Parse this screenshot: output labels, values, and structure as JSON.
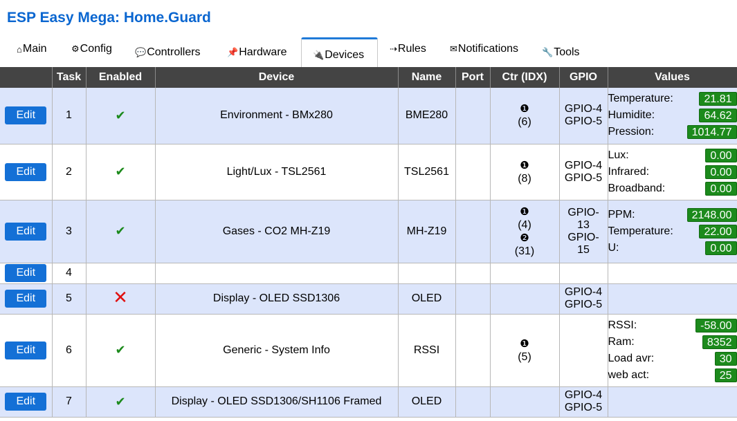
{
  "app": {
    "title": "ESP Easy Mega: Home.Guard"
  },
  "tabs": [
    {
      "icon": "⌂",
      "label": "Main"
    },
    {
      "icon": "⚙",
      "label": "Config"
    },
    {
      "icon": "💬",
      "label": "Controllers"
    },
    {
      "icon": "📌",
      "label": "Hardware"
    },
    {
      "icon": "🔌",
      "label": "Devices"
    },
    {
      "icon": "⇢",
      "label": "Rules"
    },
    {
      "icon": "✉",
      "label": "Notifications"
    },
    {
      "icon": "🔧",
      "label": "Tools"
    }
  ],
  "table": {
    "headers": [
      "",
      "Task",
      "Enabled",
      "Device",
      "Name",
      "Port",
      "Ctr (IDX)",
      "GPIO",
      "Values"
    ],
    "edit_label": "Edit",
    "rows": [
      {
        "task": "1",
        "device": "Environment - BMx280",
        "name": "BME280",
        "ctr": [
          {
            "bullet": "❶",
            "idx": "(6)"
          }
        ],
        "gpio": [
          "GPIO-4",
          "GPIO-5"
        ],
        "values": [
          {
            "name": "Temperature:",
            "value": "21.81"
          },
          {
            "name": "Humidite:",
            "value": "64.62"
          },
          {
            "name": "Pression:",
            "value": "1014.77"
          }
        ]
      },
      {
        "task": "2",
        "device": "Light/Lux - TSL2561",
        "name": "TSL2561",
        "ctr": [
          {
            "bullet": "❶",
            "idx": "(8)"
          }
        ],
        "gpio": [
          "GPIO-4",
          "GPIO-5"
        ],
        "values": [
          {
            "name": "Lux:",
            "value": "0.00"
          },
          {
            "name": "Infrared:",
            "value": "0.00"
          },
          {
            "name": "Broadband:",
            "value": "0.00"
          }
        ]
      },
      {
        "task": "3",
        "device": "Gases - CO2 MH-Z19",
        "name": "MH-Z19",
        "ctr": [
          {
            "bullet": "❶",
            "idx": "(4)"
          },
          {
            "bullet": "❷",
            "idx": "(31)"
          }
        ],
        "gpio": [
          "GPIO-",
          "13",
          "GPIO-",
          "15"
        ],
        "values": [
          {
            "name": "PPM:",
            "value": "2148.00"
          },
          {
            "name": "Temperature:",
            "value": "22.00"
          },
          {
            "name": "U:",
            "value": "0.00"
          }
        ]
      },
      {
        "task": "4"
      },
      {
        "task": "5",
        "device": "Display - OLED SSD1306",
        "name": "OLED",
        "gpio": [
          "GPIO-4",
          "GPIO-5"
        ]
      },
      {
        "task": "6",
        "device": "Generic - System Info",
        "name": "RSSI",
        "ctr": [
          {
            "bullet": "❶",
            "idx": "(5)"
          }
        ],
        "values": [
          {
            "name": "RSSI:",
            "value": "-58.00"
          },
          {
            "name": "Ram:",
            "value": "8352"
          },
          {
            "name": "Load avr:",
            "value": "30"
          },
          {
            "name": "web act:",
            "value": "25"
          }
        ]
      },
      {
        "task": "7",
        "device": "Display - OLED SSD1306/SH1106 Framed",
        "name": "OLED",
        "gpio": [
          "GPIO-4",
          "GPIO-5"
        ]
      }
    ]
  },
  "colors": {
    "accent": "#0a66d0",
    "button": "#1470d6",
    "value_badge": "#1c8a1c",
    "disabled": "#e01010",
    "row_odd": "#dce5fb",
    "header_bg": "#444444"
  }
}
